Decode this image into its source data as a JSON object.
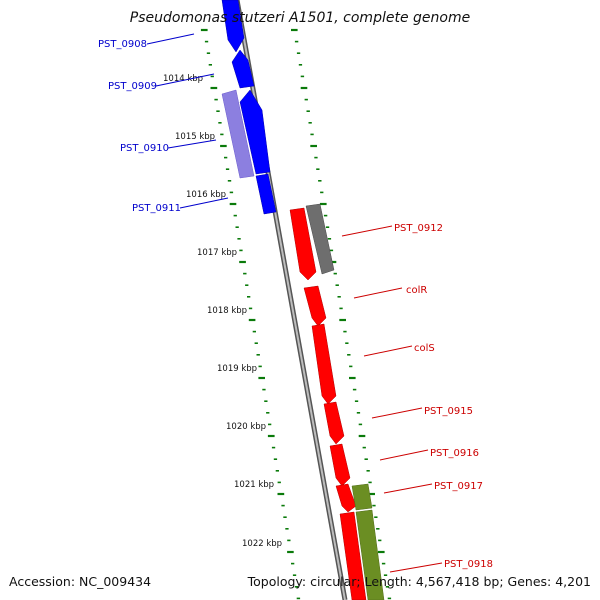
{
  "title": "Pseudomonas stutzeri A1501, complete genome",
  "accession": "Accession: NC_009434",
  "topology": "Topology: circular; Length: 4,567,418 bp; Genes: 4,201",
  "colors": {
    "backbone": "#8a8a8a",
    "tick": "#0a7a0a",
    "blue_gene": "#0000ff",
    "blue_light": "#8c7fe0",
    "red_gene": "#ff0000",
    "grey_gene": "#6e6e6e",
    "olive_gene": "#6b8e23",
    "label_blue": "#0000cc",
    "label_red": "#cc0000"
  },
  "ticks": [
    "1014 kbp",
    "1015 kbp",
    "1016 kbp",
    "1017 kbp",
    "1018 kbp",
    "1019 kbp",
    "1020 kbp",
    "1021 kbp",
    "1022 kbp"
  ],
  "genes": [
    {
      "label": "PST_0908",
      "strand": "forward",
      "color": "blue"
    },
    {
      "label": "PST_0909",
      "strand": "forward",
      "color": "blue"
    },
    {
      "label": "PST_0910",
      "strand": "forward",
      "color": "blue"
    },
    {
      "label": "PST_0911",
      "strand": "forward",
      "color": "blue"
    },
    {
      "label": "PST_0912",
      "strand": "reverse",
      "color": "red"
    },
    {
      "label": "colR",
      "strand": "reverse",
      "color": "red"
    },
    {
      "label": "colS",
      "strand": "reverse",
      "color": "red"
    },
    {
      "label": "PST_0915",
      "strand": "reverse",
      "color": "red"
    },
    {
      "label": "PST_0916",
      "strand": "reverse",
      "color": "red"
    },
    {
      "label": "PST_0917",
      "strand": "reverse",
      "color": "red"
    },
    {
      "label": "PST_0918",
      "strand": "reverse",
      "color": "red"
    }
  ]
}
